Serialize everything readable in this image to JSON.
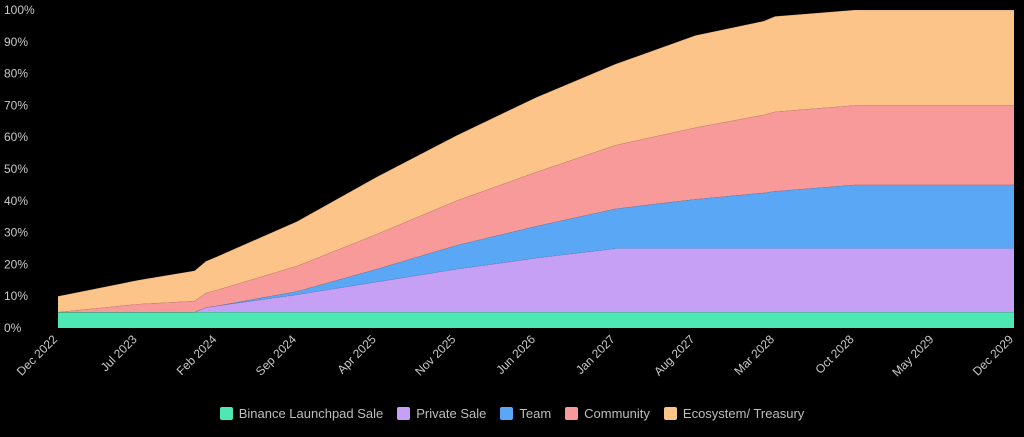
{
  "chart_data": {
    "type": "area",
    "stacked": true,
    "ylim": [
      0,
      100
    ],
    "y_ticks": [
      "0%",
      "10%",
      "20%",
      "30%",
      "40%",
      "50%",
      "60%",
      "70%",
      "80%",
      "90%",
      "100%"
    ],
    "x_ticks": [
      "Dec 2022",
      "Jul 2023",
      "Feb 2024",
      "Sep 2024",
      "Apr 2025",
      "Nov 2025",
      "Jun 2026",
      "Jan 2027",
      "Aug 2027",
      "Mar 2028",
      "Oct 2028",
      "May 2029",
      "Dec 2029"
    ],
    "x": [
      "Dec 2022",
      "Jul 2023",
      "Dec 2023",
      "Jan 2024",
      "Feb 2024",
      "Sep 2024",
      "Apr 2025",
      "Nov 2025",
      "Jun 2026",
      "Jan 2027",
      "Aug 2027",
      "Feb 2028",
      "Mar 2028",
      "Oct 2028",
      "Nov 2028",
      "May 2029",
      "Dec 2029"
    ],
    "series": [
      {
        "name": "Binance Launchpad Sale",
        "color": "#4de8b4",
        "values": [
          5,
          5,
          5,
          5,
          5,
          5,
          5,
          5,
          5,
          5,
          5,
          5,
          5,
          5,
          5,
          5,
          5
        ]
      },
      {
        "name": "Private Sale",
        "color": "#c5a0f5",
        "values": [
          0,
          0,
          0,
          1.5,
          2,
          5.5,
          9.5,
          13.5,
          17,
          20,
          20,
          20,
          20,
          20,
          20,
          20,
          20
        ]
      },
      {
        "name": "Team",
        "color": "#5aa8f5",
        "values": [
          0,
          0,
          0,
          0,
          0,
          1,
          4,
          7.5,
          10,
          12.5,
          15.5,
          17.5,
          18,
          20,
          20,
          20,
          20
        ]
      },
      {
        "name": "Community",
        "color": "#f99a9a",
        "values": [
          0,
          2.5,
          3.5,
          4.5,
          5,
          8,
          11,
          14,
          17,
          20,
          22.5,
          24.5,
          25,
          25,
          25,
          25,
          25
        ]
      },
      {
        "name": "Ecosystem/ Treasury",
        "color": "#fdc48a",
        "values": [
          5,
          7.5,
          9.5,
          10,
          10.5,
          14,
          18,
          20.5,
          23.5,
          25.5,
          29,
          29.5,
          30,
          30,
          30,
          30,
          30
        ]
      }
    ],
    "legend_position": "bottom-center",
    "grid": false
  }
}
